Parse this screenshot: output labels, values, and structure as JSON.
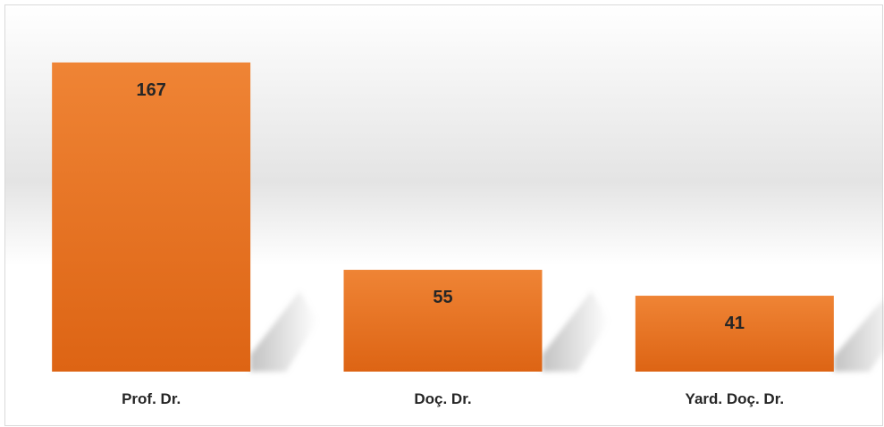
{
  "chart_data": {
    "type": "bar",
    "title": "",
    "xlabel": "",
    "ylabel": "",
    "categories": [
      "Prof. Dr.",
      "Doç. Dr.",
      "Yard. Doç. Dr."
    ],
    "values": [
      167,
      55,
      41
    ],
    "ylim": [
      0,
      180
    ],
    "grid": false,
    "legend": "none",
    "data_labels": [
      "167",
      "55",
      "41"
    ],
    "colors": {
      "bar_top": "#ef8435",
      "bar_bottom": "#dd6414",
      "label_text": "#262626",
      "shadow": "#bfbfbf",
      "frame_border": "#d9d9d9",
      "wall_gradient_mid": "#e4e4e4"
    }
  }
}
